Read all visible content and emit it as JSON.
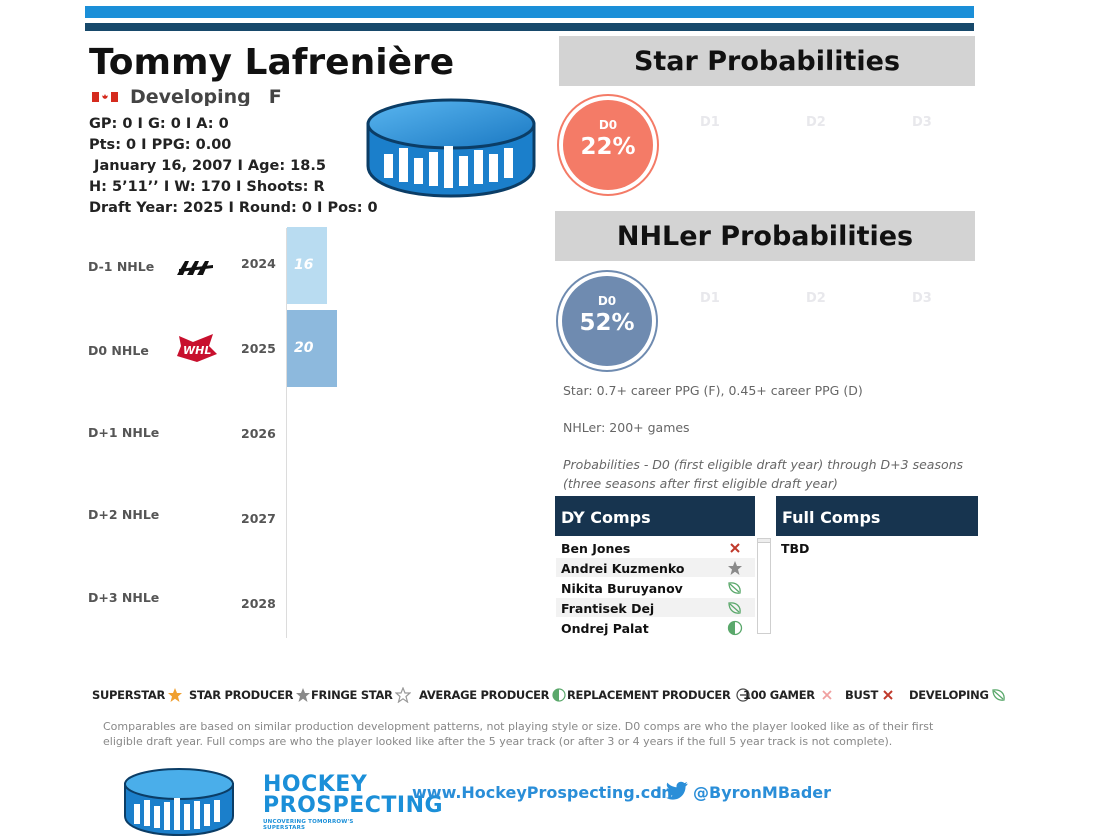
{
  "player": {
    "name": "Tommy Lafrenière",
    "status": "Developing",
    "position": "F",
    "stats_line1": "GP: 0 I G: 0 I A: 0",
    "stats_line2": "Pts: 0 I PPG: 0.00",
    "stats_line3": " January 16, 2007 I Age: 18.5",
    "stats_line4": "H: 5’11’’ I W: 170 I Shoots: R",
    "stats_line5": "Draft Year: 2025 I Round: 0 I Pos: 0"
  },
  "nhle_rows": [
    {
      "label": "D-1 NHLe",
      "year": "2024",
      "value": 16,
      "league": "AAA"
    },
    {
      "label": "D0 NHLe",
      "year": "2025",
      "value": 20,
      "league": "WHL"
    },
    {
      "label": "D+1 NHLe",
      "year": "2026",
      "value": null
    },
    {
      "label": "D+2 NHLe",
      "year": "2027",
      "value": null
    },
    {
      "label": "D+3 NHLe",
      "year": "2028",
      "value": null
    }
  ],
  "star_probabilities": {
    "title": "Star Probabilities",
    "d0_label": "D0",
    "d0_value": "22%",
    "d0_fraction": 0.22,
    "other_labels": [
      "D1",
      "D2",
      "D3"
    ],
    "color": "#f47b67"
  },
  "nhler_probabilities": {
    "title": "NHLer Probabilities",
    "d0_label": "D0",
    "d0_value": "52%",
    "d0_fraction": 0.52,
    "other_labels": [
      "D1",
      "D2",
      "D3"
    ],
    "color": "#6f8bb0"
  },
  "definitions": {
    "star": "Star: 0.7+ career PPG (F), 0.45+ career PPG (D)",
    "nhler": "NHLer: 200+ games",
    "prob_line1": "Probabilities - D0 (first eligible draft year) through D+3 seasons",
    "prob_line2": "(three seasons after first eligible draft year)"
  },
  "dy_comps": {
    "title": "DY Comps",
    "rows": [
      {
        "name": "Ben Jones",
        "icon": "bust-x-icon"
      },
      {
        "name": "Andrei Kuzmenko",
        "icon": "star-producer-icon"
      },
      {
        "name": "Nikita Buruyanov",
        "icon": "developing-leaf-icon"
      },
      {
        "name": "Frantisek Dej",
        "icon": "developing-leaf-icon"
      },
      {
        "name": "Ondrej Palat",
        "icon": "average-producer-icon"
      }
    ]
  },
  "full_comps": {
    "title": "Full Comps",
    "rows": [
      "TBD"
    ]
  },
  "legend": [
    {
      "label": "SUPERSTAR",
      "icon": "superstar-icon"
    },
    {
      "label": "STAR PRODUCER",
      "icon": "star-producer-icon"
    },
    {
      "label": "FRINGE STAR",
      "icon": "fringe-star-icon"
    },
    {
      "label": "AVERAGE PRODUCER",
      "icon": "average-producer-icon"
    },
    {
      "label": "REPLACEMENT PRODUCER",
      "icon": "replacement-producer-icon"
    },
    {
      "label": "100 GAMER",
      "icon": "hundred-gamer-icon"
    },
    {
      "label": "BUST",
      "icon": "bust-x-icon"
    },
    {
      "label": "DEVELOPING",
      "icon": "developing-leaf-icon"
    }
  ],
  "footnote": "Comparables are based on similar production development patterns, not playing style or size. D0 comps are who the player looked like as of their first eligible draft year. Full comps are who the player looked like after the 5 year track (or after 3 or 4 years if the full 5 year track is not complete).",
  "footer": {
    "brand_line1": "HOCKEY",
    "brand_line2": "PROSPECTING",
    "brand_tagline": "UNCOVERING TOMORROW'S SUPERSTARS",
    "website": "www.HockeyProspecting.com",
    "separator": "I",
    "twitter_handle": "@ByronMBader"
  },
  "colors": {
    "accent_blue": "#1b8fd8",
    "dark_navy": "#17344f",
    "nhle_bar_light": "#b9dcf1",
    "nhle_bar_mid": "#8db9dd"
  }
}
